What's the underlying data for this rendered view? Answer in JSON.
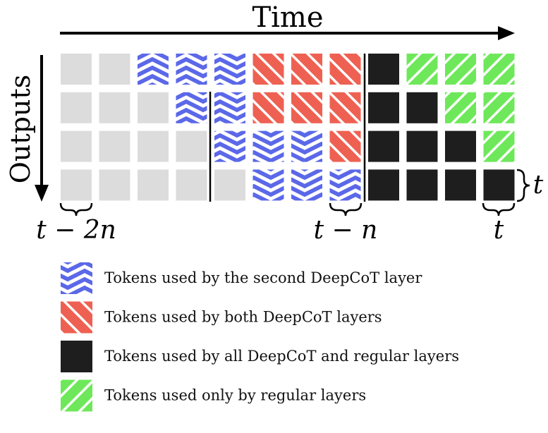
{
  "labels": {
    "time": "Time",
    "outputs": "Outputs",
    "t_minus_2n": "t − 2n",
    "t_minus_n": "t − n",
    "t_bottom": "t",
    "t_right": "t"
  },
  "grid": {
    "rows": [
      [
        "gray",
        "gray",
        "blue",
        "blue",
        "blue",
        "red",
        "red",
        "red",
        "black",
        "green",
        "green",
        "green"
      ],
      [
        "gray",
        "gray",
        "gray",
        "blue",
        "blue",
        "red",
        "red",
        "red",
        "black",
        "black",
        "green",
        "green"
      ],
      [
        "gray",
        "gray",
        "gray",
        "gray",
        "blue",
        "blue",
        "blue",
        "red",
        "black",
        "black",
        "black",
        "green"
      ],
      [
        "gray",
        "gray",
        "gray",
        "gray",
        "gray",
        "blue",
        "blue",
        "blue",
        "black",
        "black",
        "black",
        "black"
      ]
    ]
  },
  "colors": {
    "gray": "#dcdcdc",
    "blue": "#5b68e8",
    "red": "#ee6152",
    "black": "#1e1e1e",
    "green": "#6ee85a"
  },
  "legend": [
    {
      "color": "blue",
      "label": "Tokens used by the second DeepCoT layer"
    },
    {
      "color": "red",
      "label": "Tokens used by both DeepCoT layers"
    },
    {
      "color": "black",
      "label": "Tokens used by all DeepCoT and regular layers"
    },
    {
      "color": "green",
      "label": "Tokens used only by regular layers"
    }
  ]
}
